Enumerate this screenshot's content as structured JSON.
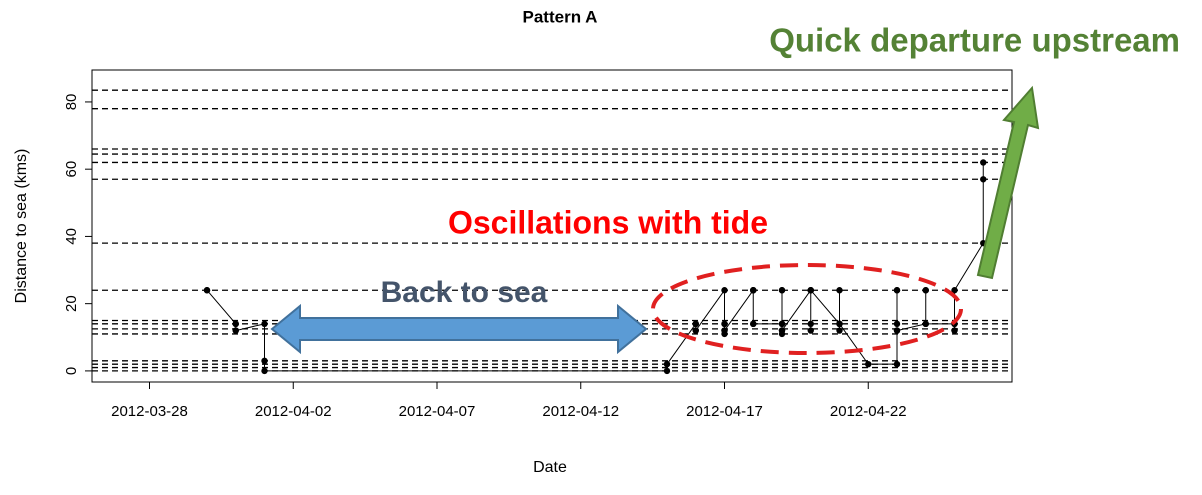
{
  "chart_data": {
    "type": "line",
    "title": "Pattern A",
    "x_label": "Date",
    "y_label": "Distance to sea (kms)",
    "annotations": [
      "Quick departure upstream",
      "Oscillations with tide",
      "Back to sea"
    ],
    "x": [
      "2012-03-30",
      "2012-03-30",
      "2012-03-31",
      "2012-03-31",
      "2012-03-31",
      "2012-03-31",
      "2012-04-01",
      "2012-04-01",
      "2012-04-01",
      "2012-04-15",
      "2012-04-15",
      "2012-04-16",
      "2012-04-16",
      "2012-04-16",
      "2012-04-16",
      "2012-04-16",
      "2012-04-17",
      "2012-04-17",
      "2012-04-17",
      "2012-04-17",
      "2012-04-17",
      "2012-04-17",
      "2012-04-18",
      "2012-04-18",
      "2012-04-18",
      "2012-04-18",
      "2012-04-18",
      "2012-04-19",
      "2012-04-19",
      "2012-04-19",
      "2012-04-19",
      "2012-04-19",
      "2012-04-19",
      "2012-04-19",
      "2012-04-20",
      "2012-04-20",
      "2012-04-20",
      "2012-04-20",
      "2012-04-20",
      "2012-04-21",
      "2012-04-21",
      "2012-04-21",
      "2012-04-21",
      "2012-04-21",
      "2012-04-22",
      "2012-04-23",
      "2012-04-23",
      "2012-04-23",
      "2012-04-23",
      "2012-04-23",
      "2012-04-23",
      "2012-04-24",
      "2012-04-24",
      "2012-04-24",
      "2012-04-24",
      "2012-04-25",
      "2012-04-25",
      "2012-04-25",
      "2012-04-25",
      "2012-04-25",
      "2012-04-26",
      "2012-04-26",
      "2012-04-26"
    ],
    "values": [
      24,
      24,
      14,
      12,
      14,
      12,
      14,
      3,
      0,
      0,
      2,
      14,
      12,
      14,
      14,
      12,
      24,
      12,
      14,
      11,
      14,
      12,
      24,
      14,
      24,
      24,
      14,
      14,
      12,
      24,
      14,
      11,
      24,
      12,
      24,
      24,
      12,
      14,
      24,
      14,
      24,
      12,
      14,
      14,
      2,
      2,
      24,
      24,
      12,
      14,
      12,
      14,
      24,
      24,
      14,
      14,
      12,
      14,
      12,
      24,
      38,
      57,
      62
    ],
    "color": "#000000",
    "reference_lines": [
      0,
      1,
      2,
      3,
      11,
      12.5,
      14,
      15,
      24,
      38,
      57,
      62,
      64.5,
      66,
      78,
      83.5
    ],
    "xlim": [
      "2012-03-26",
      "2012-04-27"
    ],
    "xticks": [
      "2012-03-28",
      "2012-04-02",
      "2012-04-07",
      "2012-04-12",
      "2012-04-17",
      "2012-04-22"
    ],
    "ylim": [
      -3.3,
      89.5
    ],
    "yticks": [
      0,
      20,
      40,
      60,
      80
    ]
  }
}
